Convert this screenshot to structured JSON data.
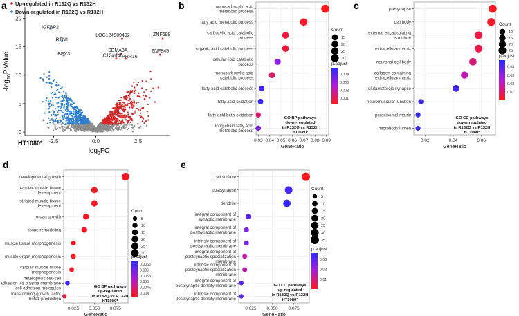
{
  "colors": {
    "up": "#d62728",
    "down": "#2f7fd0",
    "ns": "#8c8c8c",
    "padj_low": "#ff1a1a",
    "padj_high": "#2a2aff",
    "grid": "#ebebeb",
    "frame": "#7f7f7f"
  },
  "chart_data": [
    {
      "panel": "a",
      "type": "scatter",
      "title": "",
      "xlabel": "log₂FC",
      "ylabel": "-log₁₀P.Value",
      "xlabel_main": "log",
      "xlabel_sub": "2",
      "xlabel_tail": "FC",
      "ylabel_main": "-log",
      "ylabel_sub": "10",
      "ylabel_tail": "P.Value",
      "xlim": [
        -4.2,
        4.4
      ],
      "ylim": [
        -0.6,
        22
      ],
      "xticks": [
        -2.5,
        0,
        2.5
      ],
      "xtick_labels": [
        "-2.5",
        "0.0",
        "2.5"
      ],
      "yticks": [
        0,
        5,
        10,
        15,
        20
      ],
      "legend": [
        {
          "label": "Up-regulated in R132Q vs R132H",
          "color_key": "up"
        },
        {
          "label": "Down-regulated in R132Q vs R132H",
          "color_key": "down"
        }
      ],
      "cell_line": "HT1080*",
      "gene_labels": [
        {
          "gene": "IGFBP2",
          "x": -2.7,
          "y": 18.2
        },
        {
          "gene": "RTN1",
          "x": -2.0,
          "y": 16.0
        },
        {
          "gene": "BEX3",
          "x": -1.9,
          "y": 13.5
        },
        {
          "gene": "LOC124909492",
          "x": 1.0,
          "y": 16.8
        },
        {
          "gene": "ZNF699",
          "x": 3.9,
          "y": 16.9
        },
        {
          "gene": "SEMA3A",
          "x": 1.3,
          "y": 14.1
        },
        {
          "gene": "ZNF845",
          "x": 3.8,
          "y": 14.0
        },
        {
          "gene": "C13orf46",
          "x": 1.0,
          "y": 13.2
        },
        {
          "gene": "PRR16",
          "x": 2.0,
          "y": 13.0
        }
      ],
      "highlight_points": [
        {
          "x": -2.7,
          "y": 18.2,
          "group": "down"
        },
        {
          "x": -2.0,
          "y": 16.0,
          "group": "down"
        },
        {
          "x": -1.9,
          "y": 13.5,
          "group": "down"
        },
        {
          "x": 1.55,
          "y": 16.4,
          "group": "up"
        },
        {
          "x": 3.95,
          "y": 16.4,
          "group": "up"
        },
        {
          "x": 1.5,
          "y": 13.8,
          "group": "up"
        },
        {
          "x": 3.8,
          "y": 13.6,
          "group": "up"
        },
        {
          "x": 1.2,
          "y": 12.9,
          "group": "up"
        },
        {
          "x": 1.75,
          "y": 12.9,
          "group": "up"
        },
        {
          "x": -3.1,
          "y": 2.1,
          "group": "ns"
        },
        {
          "x": -2.6,
          "y": 2.3,
          "group": "ns"
        }
      ]
    },
    {
      "panel": "b",
      "type": "scatter",
      "subtype": "dotplot",
      "xlabel": "GeneRatio",
      "xlim": [
        0.028,
        0.092
      ],
      "xticks": [
        0.03,
        0.04,
        0.05,
        0.06,
        0.07,
        0.08,
        0.09
      ],
      "xtick_labels": [
        "0.03",
        "0.04",
        "0.05",
        "0.06",
        "0.07",
        "0.08",
        "0.09"
      ],
      "annotation": [
        "GO BP pathways",
        "down-regulated",
        "in R132Q vs R132H",
        "HT1080*"
      ],
      "count_legend": {
        "title": "Count",
        "values": [
          15,
          20,
          25,
          30
        ]
      },
      "color_legend": {
        "title": "p.adjust",
        "ticks": [
          0.004,
          0.003,
          0.002,
          0.001
        ],
        "min": 0.0003,
        "max": 0.0048
      },
      "terms": [
        {
          "label": [
            "monocarboxylic acid",
            "metabolic process"
          ],
          "x": 0.089,
          "count": 33,
          "padj": 0.0003
        },
        {
          "label": [
            "fatty acid metabolic process"
          ],
          "x": 0.07,
          "count": 26,
          "padj": 0.0005
        },
        {
          "label": [
            "carboxylic acid catabolic",
            "process"
          ],
          "x": 0.054,
          "count": 20,
          "padj": 0.0007
        },
        {
          "label": [
            "organic acid catabolic process"
          ],
          "x": 0.054,
          "count": 20,
          "padj": 0.0007
        },
        {
          "label": [
            "cellular lipid catabolic",
            "process"
          ],
          "x": 0.047,
          "count": 17,
          "padj": 0.0032
        },
        {
          "label": [
            "monocarboxylic acid",
            "catabolic process"
          ],
          "x": 0.042,
          "count": 15,
          "padj": 0.0012
        },
        {
          "label": [
            "fatty acid catabolic process"
          ],
          "x": 0.033,
          "count": 11,
          "padj": 0.0043
        },
        {
          "label": [
            "fatty acid oxidation"
          ],
          "x": 0.032,
          "count": 11,
          "padj": 0.0046
        },
        {
          "label": [
            "fatty acid beta-oxidation"
          ],
          "x": 0.03,
          "count": 9,
          "padj": 0.0013
        },
        {
          "label": [
            "long-chain fatty acid",
            "metabolic process"
          ],
          "x": 0.03,
          "count": 9,
          "padj": 0.0034
        }
      ]
    },
    {
      "panel": "c",
      "type": "scatter",
      "subtype": "dotplot",
      "xlabel": "GeneRatio",
      "xlim": [
        0.012,
        0.07
      ],
      "xticks": [
        0.02,
        0.04,
        0.06
      ],
      "xtick_labels": [
        "0.02",
        "0.04",
        "0.06"
      ],
      "annotation": [
        "GO CC pathways",
        "down-regulated",
        "in R132Q vs R132H",
        "HT1080*"
      ],
      "count_legend": {
        "title": "Count",
        "values": [
          10,
          15,
          20,
          25
        ]
      },
      "color_legend": {
        "title": "p.adjust",
        "ticks": [
          0.04,
          0.03,
          0.02,
          0.01
        ],
        "min": 0.0,
        "max": 0.048
      },
      "terms": [
        {
          "label": [
            "presynapse"
          ],
          "x": 0.068,
          "count": 28,
          "padj": 0.001
        },
        {
          "label": [
            "cell body"
          ],
          "x": 0.067,
          "count": 27,
          "padj": 0.002
        },
        {
          "label": [
            "external encapsulating",
            "structure"
          ],
          "x": 0.058,
          "count": 24,
          "padj": 0.006
        },
        {
          "label": [
            "extracellular matrix"
          ],
          "x": 0.058,
          "count": 24,
          "padj": 0.006
        },
        {
          "label": [
            "neuronal cell body"
          ],
          "x": 0.054,
          "count": 22,
          "padj": 0.012
        },
        {
          "label": [
            "collagen-containing",
            "extracellular matrix"
          ],
          "x": 0.048,
          "count": 20,
          "padj": 0.02
        },
        {
          "label": [
            "glutamatergic synapse"
          ],
          "x": 0.042,
          "count": 17,
          "padj": 0.043
        },
        {
          "label": [
            "neuromuscular junction"
          ],
          "x": 0.017,
          "count": 7,
          "padj": 0.045
        },
        {
          "label": [
            "peroxisomal matrix"
          ],
          "x": 0.015,
          "count": 6,
          "padj": 0.046
        },
        {
          "label": [
            "microbody lumen"
          ],
          "x": 0.015,
          "count": 6,
          "padj": 0.046
        }
      ]
    },
    {
      "panel": "d",
      "type": "scatter",
      "subtype": "dotplot",
      "xlabel": "GeneRatio",
      "xlim": [
        0.0135,
        0.09
      ],
      "xticks": [
        0.025,
        0.05,
        0.075
      ],
      "xtick_labels": [
        "0.025",
        "0.050",
        "0.075"
      ],
      "annotation": [
        "GO BP pathways",
        "up-regulated",
        "in R132Q vs R132H",
        "HT1080*"
      ],
      "count_legend": {
        "title": "Count",
        "values": [
          5,
          10,
          15,
          20,
          25,
          30
        ]
      },
      "color_legend": {
        "title": "p.adjust",
        "ticks": [
          0.0065,
          0.006,
          0.0055,
          0.005,
          0.0045,
          0.004
        ],
        "min": 0.0037,
        "max": 0.0068
      },
      "terms": [
        {
          "label": [
            "developmental growth"
          ],
          "x": 0.087,
          "count": 33,
          "padj": 0.0038
        },
        {
          "label": [
            "cardiac muscle tissue",
            "development"
          ],
          "x": 0.05,
          "count": 19,
          "padj": 0.0038
        },
        {
          "label": [
            "striated muscle tissue",
            "development"
          ],
          "x": 0.05,
          "count": 19,
          "padj": 0.0038
        },
        {
          "label": [
            "organ growth"
          ],
          "x": 0.04,
          "count": 15,
          "padj": 0.0038
        },
        {
          "label": [
            "tissue remodeling"
          ],
          "x": 0.038,
          "count": 14,
          "padj": 0.0038
        },
        {
          "label": [
            "muscle tissue morphogenesis"
          ],
          "x": 0.025,
          "count": 9,
          "padj": 0.0038
        },
        {
          "label": [
            "muscle organ morphogenesis"
          ],
          "x": 0.025,
          "count": 9,
          "padj": 0.0038
        },
        {
          "label": [
            "cardiac muscle tissue",
            "morphogenesis"
          ],
          "x": 0.023,
          "count": 8,
          "padj": 0.0038
        },
        {
          "label": [
            "heterophilic cell-cell",
            "adhesion via plasma membrane",
            "cell adhesion molecules"
          ],
          "x": 0.018,
          "count": 6,
          "padj": 0.0066
        },
        {
          "label": [
            "transforming growth factor",
            "beta1 production"
          ],
          "x": 0.0145,
          "count": 5,
          "padj": 0.004
        }
      ]
    },
    {
      "panel": "e",
      "type": "scatter",
      "subtype": "dotplot",
      "xlabel": "GeneRatio",
      "xlim": [
        0.011,
        0.093
      ],
      "xticks": [
        0.025,
        0.05,
        0.075
      ],
      "xtick_labels": [
        "0.025",
        "0.050",
        "0.075"
      ],
      "annotation": [
        "GO CC pathways",
        "up-regulated",
        "in R132Q vs R132H",
        "HT1080*"
      ],
      "count_legend": {
        "title": "Count",
        "values": [
          5,
          10,
          15,
          20,
          25,
          30,
          35
        ]
      },
      "color_legend": {
        "title": "p.adjust",
        "ticks": [
          0.03,
          0.02,
          0.01
        ],
        "min": 0.0005,
        "max": 0.036
      },
      "terms": [
        {
          "label": [
            "cell surface"
          ],
          "x": 0.089,
          "count": 35,
          "padj": 0.001
        },
        {
          "label": [
            "postsynapse"
          ],
          "x": 0.069,
          "count": 27,
          "padj": 0.032
        },
        {
          "label": [
            "dendrite"
          ],
          "x": 0.067,
          "count": 26,
          "padj": 0.035
        },
        {
          "label": [
            "integral component of",
            "synaptic membrane"
          ],
          "x": 0.022,
          "count": 9,
          "padj": 0.03
        },
        {
          "label": [
            "integral component of",
            "postsynaptic membrane"
          ],
          "x": 0.02,
          "count": 8,
          "padj": 0.025
        },
        {
          "label": [
            "intrinsic component of",
            "postsynaptic membrane"
          ],
          "x": 0.02,
          "count": 8,
          "padj": 0.025
        },
        {
          "label": [
            "integral component of",
            "postsynaptic specialization",
            "membrane"
          ],
          "x": 0.018,
          "count": 7,
          "padj": 0.015
        },
        {
          "label": [
            "intrinsic component of",
            "postsynaptic specialization",
            "membrane"
          ],
          "x": 0.018,
          "count": 7,
          "padj": 0.015
        },
        {
          "label": [
            "integral component of",
            "postsynaptic density membrane"
          ],
          "x": 0.014,
          "count": 5,
          "padj": 0.03
        },
        {
          "label": [
            "intrinsic component of",
            "postsynaptic density membrane"
          ],
          "x": 0.014,
          "count": 5,
          "padj": 0.03
        }
      ]
    }
  ]
}
